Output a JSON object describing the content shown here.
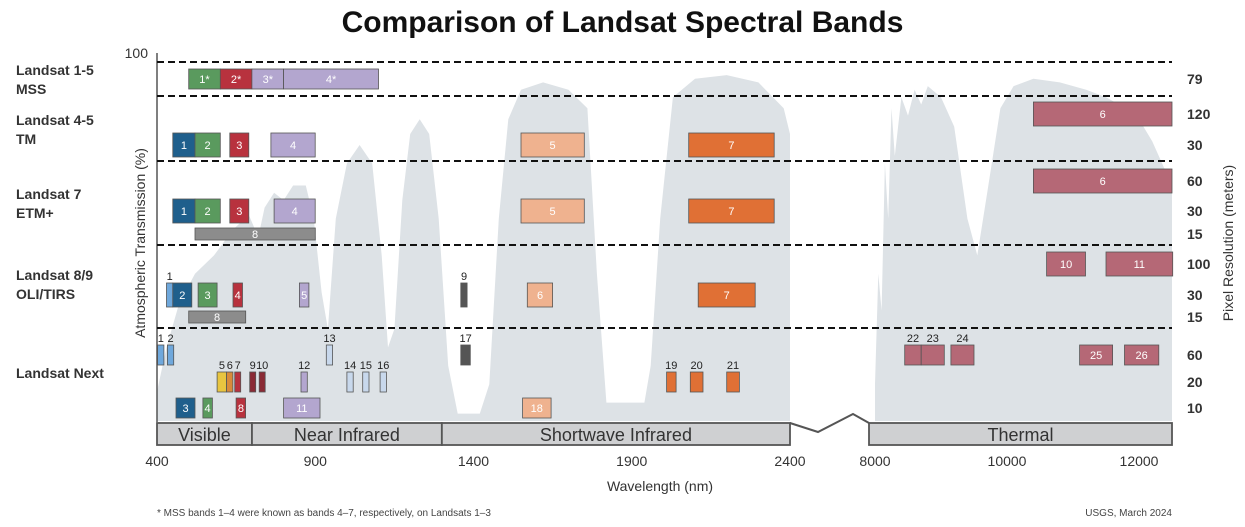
{
  "title": "Comparison of Landsat Spectral Bands",
  "footnote": "* MSS bands 1–4 were known as bands 4–7, respectively, on Landsats 1–3",
  "credit": "USGS, March 2024",
  "chart_data": {
    "type": "bar",
    "xlabel": "Wavelength (nm)",
    "ylabel_left": "Atmospheric Transmission (%)",
    "ylabel_right": "Pixel Resolution (meters)",
    "y_top_tick": "100",
    "x_ticks_nm": [
      "400",
      "900",
      "1400",
      "1900",
      "2400"
    ],
    "x_ticks_thermal": [
      "8000",
      "10000",
      "12000"
    ],
    "regions": [
      "Visible",
      "Near Infrared",
      "Shortwave Infrared",
      "Thermal"
    ],
    "satellites": [
      {
        "key": "mss",
        "name": [
          "Landsat 1-5",
          "MSS"
        ],
        "resolutions": [
          "79"
        ]
      },
      {
        "key": "tm",
        "name": [
          "Landsat 4-5",
          "TM"
        ],
        "resolutions": [
          "120",
          "30"
        ]
      },
      {
        "key": "etm",
        "name": [
          "Landsat 7",
          "ETM+"
        ],
        "resolutions": [
          "60",
          "30",
          "15"
        ]
      },
      {
        "key": "oli",
        "name": [
          "Landsat 8/9",
          "OLI/TIRS"
        ],
        "resolutions": [
          "100",
          "30",
          "15"
        ]
      },
      {
        "key": "next",
        "name": [
          "Landsat Next"
        ],
        "resolutions": [
          "60",
          "20",
          "10"
        ]
      }
    ],
    "colors": {
      "mss1": "#5a9a5e",
      "mss2": "#b8323e",
      "mss3": "#b3a6cf",
      "mss4": "#b3a6cf",
      "blue": "#1f5f8c",
      "green": "#5a9a5e",
      "red": "#b8323e",
      "nir": "#b3a6cf",
      "swir1": "#efb28f",
      "swir2": "#e07035",
      "thermal": "#b56876",
      "pan": "#8c8c8c",
      "coastal": "#6fa8dc",
      "cirrus": "#555555",
      "yellow": "#e8c540",
      "orange": "#d98a3a",
      "rededge": "#8a2a35",
      "water": "#c8d8ec",
      "spectrum": "#dde2e6"
    },
    "bands": [
      {
        "sat": "mss",
        "row": 0,
        "label": "1*",
        "start": 500,
        "end": 600,
        "color": "mss1"
      },
      {
        "sat": "mss",
        "row": 0,
        "label": "2*",
        "start": 600,
        "end": 700,
        "color": "mss2"
      },
      {
        "sat": "mss",
        "row": 0,
        "label": "3*",
        "start": 700,
        "end": 800,
        "color": "mss3"
      },
      {
        "sat": "mss",
        "row": 0,
        "label": "4*",
        "start": 800,
        "end": 1100,
        "color": "mss4"
      },
      {
        "sat": "tm",
        "row": 0,
        "label": "6",
        "start": 10400,
        "end": 12500,
        "color": "thermal"
      },
      {
        "sat": "tm",
        "row": 1,
        "label": "1",
        "start": 450,
        "end": 520,
        "color": "blue"
      },
      {
        "sat": "tm",
        "row": 1,
        "label": "2",
        "start": 520,
        "end": 600,
        "color": "green"
      },
      {
        "sat": "tm",
        "row": 1,
        "label": "3",
        "start": 630,
        "end": 690,
        "color": "red"
      },
      {
        "sat": "tm",
        "row": 1,
        "label": "4",
        "start": 760,
        "end": 900,
        "color": "nir"
      },
      {
        "sat": "tm",
        "row": 1,
        "label": "5",
        "start": 1550,
        "end": 1750,
        "color": "swir1"
      },
      {
        "sat": "tm",
        "row": 1,
        "label": "7",
        "start": 2080,
        "end": 2350,
        "color": "swir2"
      },
      {
        "sat": "etm",
        "row": 0,
        "label": "6",
        "start": 10400,
        "end": 12500,
        "color": "thermal"
      },
      {
        "sat": "etm",
        "row": 1,
        "label": "1",
        "start": 450,
        "end": 520,
        "color": "blue"
      },
      {
        "sat": "etm",
        "row": 1,
        "label": "2",
        "start": 520,
        "end": 600,
        "color": "green"
      },
      {
        "sat": "etm",
        "row": 1,
        "label": "3",
        "start": 630,
        "end": 690,
        "color": "red"
      },
      {
        "sat": "etm",
        "row": 1,
        "label": "4",
        "start": 770,
        "end": 900,
        "color": "nir"
      },
      {
        "sat": "etm",
        "row": 1,
        "label": "5",
        "start": 1550,
        "end": 1750,
        "color": "swir1"
      },
      {
        "sat": "etm",
        "row": 1,
        "label": "7",
        "start": 2080,
        "end": 2350,
        "color": "swir2"
      },
      {
        "sat": "etm",
        "row": 2,
        "label": "8",
        "start": 520,
        "end": 900,
        "color": "pan"
      },
      {
        "sat": "oli",
        "row": 0,
        "label": "10",
        "start": 10600,
        "end": 11190,
        "color": "thermal"
      },
      {
        "sat": "oli",
        "row": 0,
        "label": "11",
        "start": 11500,
        "end": 12510,
        "color": "thermal"
      },
      {
        "sat": "oli",
        "row": 1,
        "label": "1",
        "start": 430,
        "end": 450,
        "color": "coastal",
        "outside": true
      },
      {
        "sat": "oli",
        "row": 1,
        "label": "2",
        "start": 450,
        "end": 510,
        "color": "blue"
      },
      {
        "sat": "oli",
        "row": 1,
        "label": "3",
        "start": 530,
        "end": 590,
        "color": "green"
      },
      {
        "sat": "oli",
        "row": 1,
        "label": "4",
        "start": 640,
        "end": 670,
        "color": "red"
      },
      {
        "sat": "oli",
        "row": 1,
        "label": "5",
        "start": 850,
        "end": 880,
        "color": "nir"
      },
      {
        "sat": "oli",
        "row": 1,
        "label": "9",
        "start": 1360,
        "end": 1380,
        "color": "cirrus",
        "outside": true
      },
      {
        "sat": "oli",
        "row": 1,
        "label": "6",
        "start": 1570,
        "end": 1650,
        "color": "swir1"
      },
      {
        "sat": "oli",
        "row": 1,
        "label": "7",
        "start": 2110,
        "end": 2290,
        "color": "swir2"
      },
      {
        "sat": "oli",
        "row": 2,
        "label": "8",
        "start": 500,
        "end": 680,
        "color": "pan"
      },
      {
        "sat": "next",
        "row": 0,
        "label": "1",
        "start": 402,
        "end": 422,
        "color": "coastal",
        "outside": true
      },
      {
        "sat": "next",
        "row": 0,
        "label": "2",
        "start": 433,
        "end": 453,
        "color": "coastal",
        "outside": true
      },
      {
        "sat": "next",
        "row": 0,
        "label": "13",
        "start": 935,
        "end": 955,
        "color": "water",
        "outside": true
      },
      {
        "sat": "next",
        "row": 0,
        "label": "17",
        "start": 1360,
        "end": 1390,
        "color": "cirrus",
        "outside": true
      },
      {
        "sat": "next",
        "row": 0,
        "label": "22",
        "start": 8450,
        "end": 8700,
        "color": "thermal",
        "outside": true
      },
      {
        "sat": "next",
        "row": 0,
        "label": "23",
        "start": 8700,
        "end": 9050,
        "color": "thermal",
        "outside": true
      },
      {
        "sat": "next",
        "row": 0,
        "label": "24",
        "start": 9150,
        "end": 9500,
        "color": "thermal",
        "outside": true
      },
      {
        "sat": "next",
        "row": 0,
        "label": "25",
        "start": 11100,
        "end": 11600,
        "color": "thermal"
      },
      {
        "sat": "next",
        "row": 0,
        "label": "26",
        "start": 11780,
        "end": 12300,
        "color": "thermal"
      },
      {
        "sat": "next",
        "row": 1,
        "label": "5",
        "start": 590,
        "end": 620,
        "color": "yellow",
        "outside": true
      },
      {
        "sat": "next",
        "row": 1,
        "label": "6",
        "start": 620,
        "end": 640,
        "color": "orange",
        "outside": true
      },
      {
        "sat": "next",
        "row": 1,
        "label": "7",
        "start": 650,
        "end": 660,
        "color": "red",
        "outside": true
      },
      {
        "sat": "next",
        "row": 1,
        "label": "9",
        "start": 695,
        "end": 710,
        "color": "rededge",
        "outside": true
      },
      {
        "sat": "next",
        "row": 1,
        "label": "10",
        "start": 725,
        "end": 740,
        "color": "rededge",
        "outside": true
      },
      {
        "sat": "next",
        "row": 1,
        "label": "12",
        "start": 855,
        "end": 875,
        "color": "nir",
        "outside": true
      },
      {
        "sat": "next",
        "row": 1,
        "label": "14",
        "start": 1000,
        "end": 1020,
        "color": "water",
        "outside": true
      },
      {
        "sat": "next",
        "row": 1,
        "label": "15",
        "start": 1050,
        "end": 1070,
        "color": "water",
        "outside": true
      },
      {
        "sat": "next",
        "row": 1,
        "label": "16",
        "start": 1105,
        "end": 1125,
        "color": "water",
        "outside": true
      },
      {
        "sat": "next",
        "row": 1,
        "label": "19",
        "start": 2010,
        "end": 2040,
        "color": "swir2",
        "outside": true
      },
      {
        "sat": "next",
        "row": 1,
        "label": "20",
        "start": 2085,
        "end": 2125,
        "color": "swir2",
        "outside": true
      },
      {
        "sat": "next",
        "row": 1,
        "label": "21",
        "start": 2200,
        "end": 2240,
        "color": "swir2",
        "outside": true
      },
      {
        "sat": "next",
        "row": 2,
        "label": "3",
        "start": 460,
        "end": 520,
        "color": "blue"
      },
      {
        "sat": "next",
        "row": 2,
        "label": "4",
        "start": 545,
        "end": 575,
        "color": "green"
      },
      {
        "sat": "next",
        "row": 2,
        "label": "8",
        "start": 650,
        "end": 680,
        "color": "red"
      },
      {
        "sat": "next",
        "row": 2,
        "label": "11",
        "start": 800,
        "end": 915,
        "color": "nir"
      },
      {
        "sat": "next",
        "row": 2,
        "label": "18",
        "start": 1555,
        "end": 1645,
        "color": "swir1"
      }
    ]
  }
}
